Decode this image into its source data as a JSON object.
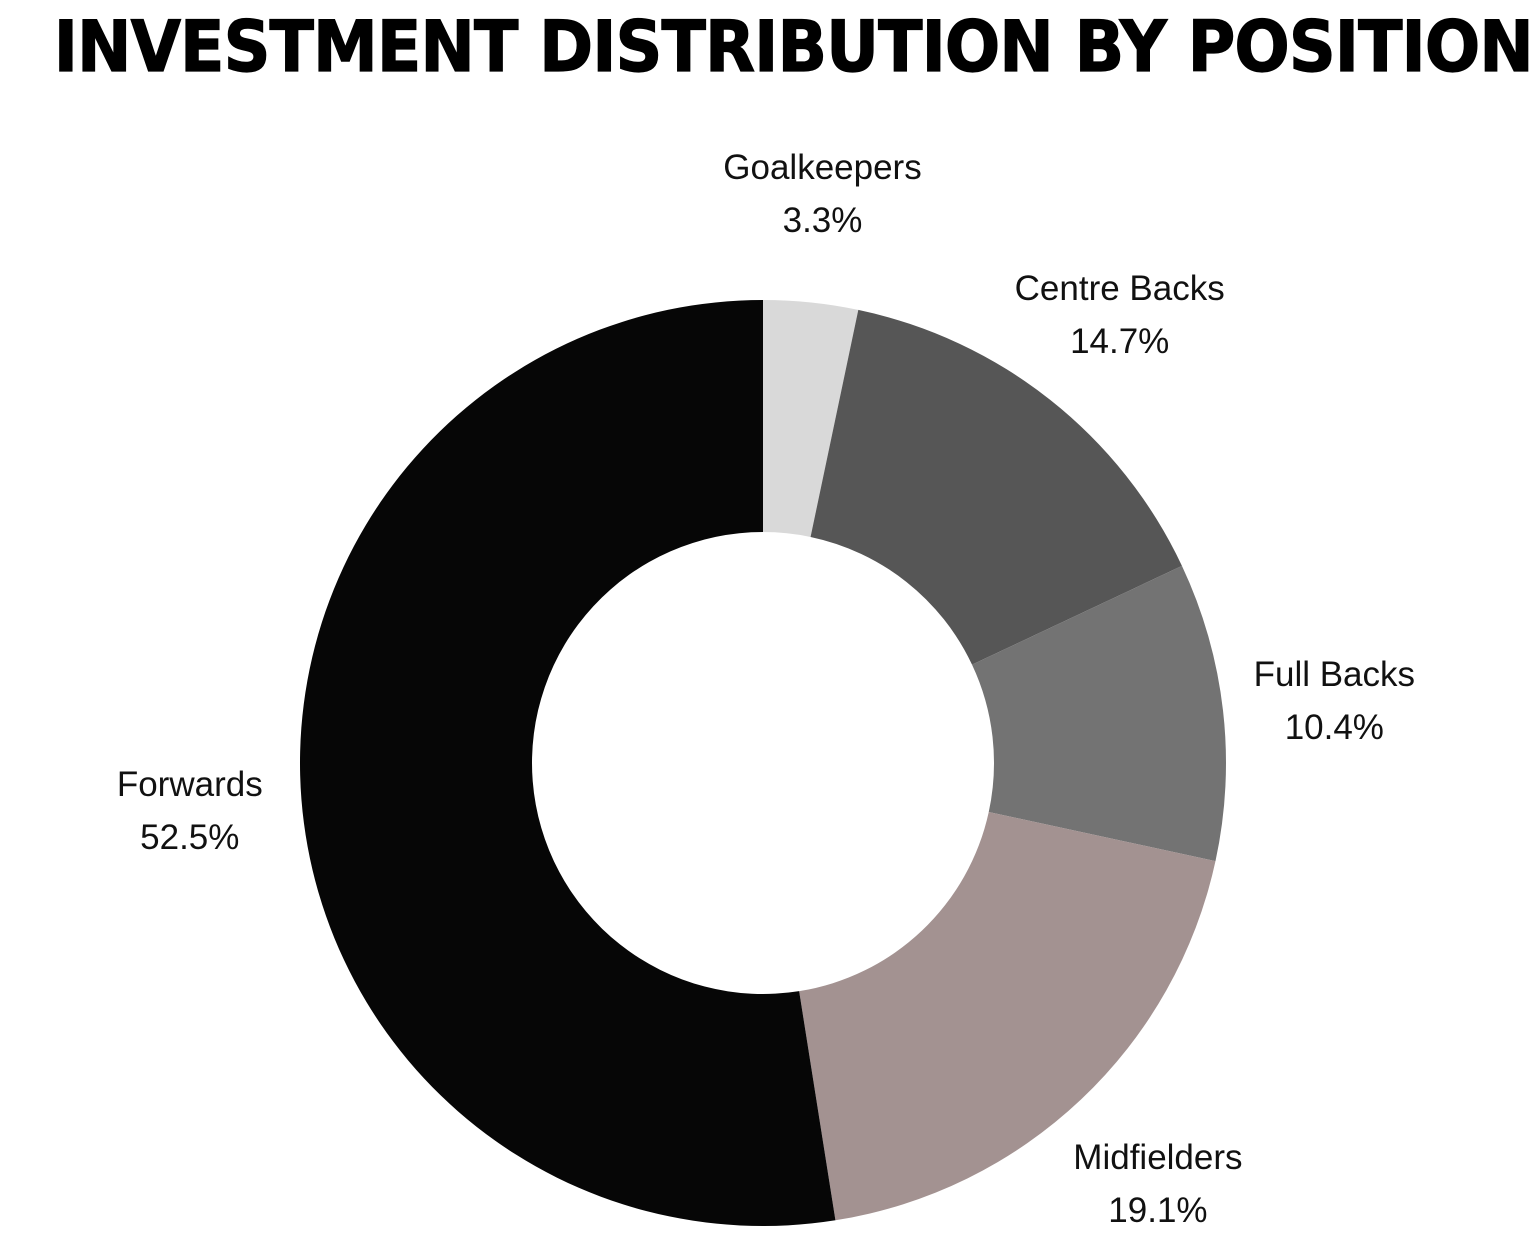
{
  "chart_data": {
    "type": "pie",
    "title": "INVESTMENT DISTRIBUTION BY POSITION",
    "donut": true,
    "legend": "none",
    "slices": [
      {
        "name": "Goalkeepers",
        "value": 3.3,
        "label": "3.3%",
        "color": "#d9d9d9"
      },
      {
        "name": "Centre Backs",
        "value": 14.7,
        "label": "14.7%",
        "color": "#565656"
      },
      {
        "name": "Full Backs",
        "value": 10.4,
        "label": "10.4%",
        "color": "#737373"
      },
      {
        "name": "Midfielders",
        "value": 19.1,
        "label": "19.1%",
        "color": "#a39291"
      },
      {
        "name": "Forwards",
        "value": 52.5,
        "label": "52.5%",
        "color": "#060606"
      }
    ]
  }
}
